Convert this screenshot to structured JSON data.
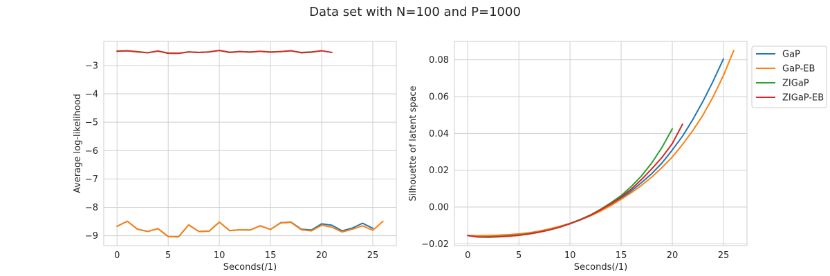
{
  "figure": {
    "suptitle": "Data set with N=100 and P=1000",
    "legend": {
      "placement": "outside-right",
      "entries": [
        "GaP",
        "GaP-EB",
        "ZIGaP",
        "ZIGaP-EB"
      ]
    },
    "colors": {
      "GaP": "#1f77b4",
      "GaP-EB": "#ff7f0e",
      "ZIGaP": "#2ca02c",
      "ZIGaP-EB": "#d62728"
    },
    "style": {
      "grid": true,
      "grid_color": "#cfcfcf",
      "spine_color": "#cccccc"
    }
  },
  "chart_data": [
    {
      "type": "line",
      "title": "",
      "xlabel": "Seconds(/1)",
      "ylabel": "Average log-likelihood",
      "xlim": [
        -1.3,
        27.3
      ],
      "ylim": [
        -9.35,
        -2.15
      ],
      "xticks": [
        0,
        5,
        10,
        15,
        20,
        25
      ],
      "yticks": [
        -9,
        -8,
        -7,
        -6,
        -5,
        -4,
        -3
      ],
      "grid": true,
      "series": [
        {
          "name": "GaP",
          "x": [
            0,
            1,
            2,
            3,
            4,
            5,
            6,
            7,
            8,
            9,
            10,
            11,
            12,
            13,
            14,
            15,
            16,
            17,
            18,
            19,
            20,
            21,
            22,
            23,
            24,
            25
          ],
          "y": [
            -8.67,
            -8.49,
            -8.77,
            -8.85,
            -8.75,
            -9.03,
            -9.04,
            -8.62,
            -8.85,
            -8.84,
            -8.52,
            -8.82,
            -8.79,
            -8.8,
            -8.65,
            -8.78,
            -8.54,
            -8.52,
            -8.77,
            -8.8,
            -8.58,
            -8.63,
            -8.83,
            -8.73,
            -8.56,
            -8.74
          ]
        },
        {
          "name": "GaP-EB",
          "x": [
            0,
            1,
            2,
            3,
            4,
            5,
            6,
            7,
            8,
            9,
            10,
            11,
            12,
            13,
            14,
            15,
            16,
            17,
            18,
            19,
            20,
            21,
            22,
            23,
            24,
            25,
            26
          ],
          "y": [
            -8.67,
            -8.49,
            -8.77,
            -8.85,
            -8.75,
            -9.03,
            -9.04,
            -8.62,
            -8.85,
            -8.84,
            -8.52,
            -8.82,
            -8.79,
            -8.8,
            -8.65,
            -8.78,
            -8.55,
            -8.53,
            -8.79,
            -8.83,
            -8.63,
            -8.7,
            -8.87,
            -8.77,
            -8.65,
            -8.81,
            -8.49
          ]
        },
        {
          "name": "ZIGaP",
          "x": [
            0,
            1,
            2,
            3,
            4,
            5,
            6,
            7,
            8,
            9,
            10,
            11,
            12,
            13,
            14,
            15,
            16,
            17,
            18,
            19,
            20
          ],
          "y": [
            -2.49,
            -2.48,
            -2.51,
            -2.55,
            -2.49,
            -2.56,
            -2.57,
            -2.52,
            -2.54,
            -2.52,
            -2.47,
            -2.53,
            -2.51,
            -2.52,
            -2.5,
            -2.52,
            -2.51,
            -2.48,
            -2.54,
            -2.52,
            -2.48
          ]
        },
        {
          "name": "ZIGaP-EB",
          "x": [
            0,
            1,
            2,
            3,
            4,
            5,
            6,
            7,
            8,
            9,
            10,
            11,
            12,
            13,
            14,
            15,
            16,
            17,
            18,
            19,
            20,
            21
          ],
          "y": [
            -2.5,
            -2.48,
            -2.52,
            -2.55,
            -2.49,
            -2.57,
            -2.57,
            -2.52,
            -2.54,
            -2.52,
            -2.47,
            -2.54,
            -2.51,
            -2.53,
            -2.5,
            -2.53,
            -2.51,
            -2.48,
            -2.55,
            -2.53,
            -2.48,
            -2.54
          ]
        }
      ]
    },
    {
      "type": "line",
      "title": "",
      "xlabel": "Seconds(/1)",
      "ylabel": "Silhouette of latent space",
      "xlim": [
        -1.3,
        27.3
      ],
      "ylim": [
        -0.021,
        0.09
      ],
      "xticks": [
        0,
        5,
        10,
        15,
        20,
        25
      ],
      "yticks": [
        -0.02,
        0.0,
        0.02,
        0.04,
        0.06,
        0.08
      ],
      "ytick_labels": [
        "−0.02",
        "0.00",
        "0.02",
        "0.04",
        "0.06",
        "0.08"
      ],
      "grid": true,
      "series": [
        {
          "name": "GaP",
          "x": [
            0,
            1,
            2,
            3,
            4,
            5,
            6,
            7,
            8,
            9,
            10,
            11,
            12,
            13,
            14,
            15,
            16,
            17,
            18,
            19,
            20,
            21,
            22,
            23,
            24,
            25
          ],
          "y": [
            -0.0155,
            -0.0158,
            -0.0158,
            -0.0156,
            -0.0153,
            -0.0148,
            -0.0141,
            -0.0131,
            -0.0119,
            -0.0106,
            -0.0089,
            -0.0068,
            -0.0045,
            -0.0017,
            0.0013,
            0.0048,
            0.0088,
            0.0133,
            0.0182,
            0.024,
            0.031,
            0.0385,
            0.0475,
            0.0575,
            0.0685,
            0.0805
          ]
        },
        {
          "name": "GaP-EB",
          "x": [
            0,
            1,
            2,
            3,
            4,
            5,
            6,
            7,
            8,
            9,
            10,
            11,
            12,
            13,
            14,
            15,
            16,
            17,
            18,
            19,
            20,
            21,
            22,
            23,
            24,
            25,
            26
          ],
          "y": [
            -0.0155,
            -0.0156,
            -0.0155,
            -0.0153,
            -0.015,
            -0.0146,
            -0.014,
            -0.0131,
            -0.0119,
            -0.0105,
            -0.0089,
            -0.007,
            -0.0048,
            -0.0022,
            0.0008,
            0.0042,
            0.0078,
            0.0118,
            0.0163,
            0.0215,
            0.0272,
            0.034,
            0.0415,
            0.05,
            0.06,
            0.0715,
            0.085
          ]
        },
        {
          "name": "ZIGaP",
          "x": [
            0,
            1,
            2,
            3,
            4,
            5,
            6,
            7,
            8,
            9,
            10,
            11,
            12,
            13,
            14,
            15,
            16,
            17,
            18,
            19,
            20
          ],
          "y": [
            -0.0155,
            -0.0162,
            -0.0162,
            -0.016,
            -0.0157,
            -0.0152,
            -0.0145,
            -0.0136,
            -0.0124,
            -0.0109,
            -0.009,
            -0.0068,
            -0.0043,
            -0.0012,
            0.0023,
            0.0062,
            0.0112,
            0.017,
            0.024,
            0.0325,
            0.0425
          ]
        },
        {
          "name": "ZIGaP-EB",
          "x": [
            0,
            1,
            2,
            3,
            4,
            5,
            6,
            7,
            8,
            9,
            10,
            11,
            12,
            13,
            14,
            15,
            16,
            17,
            18,
            19,
            20,
            21
          ],
          "y": [
            -0.0155,
            -0.0163,
            -0.0164,
            -0.0162,
            -0.0159,
            -0.0154,
            -0.0147,
            -0.0137,
            -0.0125,
            -0.011,
            -0.0091,
            -0.007,
            -0.0045,
            -0.0015,
            0.0018,
            0.0055,
            0.0098,
            0.015,
            0.0208,
            0.027,
            0.0345,
            0.045
          ]
        }
      ]
    }
  ]
}
